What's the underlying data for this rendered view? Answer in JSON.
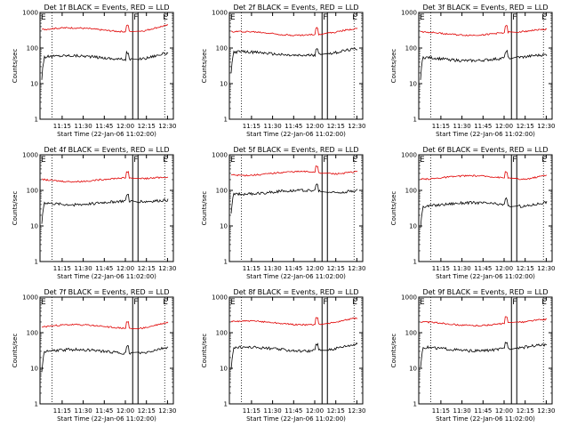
{
  "chart_data": [
    {
      "type": "line",
      "title": "Det 1f BLACK = Events, RED = LLD",
      "xlabel": "Start Time (22-Jan-06 11:02:00)",
      "ylabel": "Counts/sec",
      "yscale": "log",
      "ylim": [
        1,
        1000
      ],
      "yticks": [
        "1",
        "10",
        "100",
        "1000"
      ],
      "xticks": [
        "11:15",
        "11:30",
        "11:45",
        "12:00",
        "12:15",
        "12:30"
      ],
      "markers": [
        "F",
        "E"
      ],
      "series": [
        {
          "color": "#000000",
          "approx_level": 55
        },
        {
          "color": "#e00000",
          "approx_level": 330
        }
      ]
    },
    {
      "type": "line",
      "title": "Det 2f BLACK = Events, RED = LLD",
      "xlabel": "Start Time (22-Jan-06 11:02:00)",
      "ylabel": "Counts/sec",
      "yscale": "log",
      "ylim": [
        1,
        1000
      ],
      "yticks": [
        "1",
        "10",
        "100",
        "1000"
      ],
      "xticks": [
        "11:15",
        "11:30",
        "11:45",
        "12:00",
        "12:15",
        "12:30"
      ],
      "markers": [
        "F",
        "E"
      ],
      "series": [
        {
          "color": "#000000",
          "approx_level": 70
        },
        {
          "color": "#e00000",
          "approx_level": 260
        }
      ]
    },
    {
      "type": "line",
      "title": "Det 3f BLACK = Events, RED = LLD",
      "xlabel": "Start Time (22-Jan-06 11:02:00)",
      "ylabel": "Counts/sec",
      "yscale": "log",
      "ylim": [
        1,
        1000
      ],
      "yticks": [
        "1",
        "10",
        "100",
        "1000"
      ],
      "xticks": [
        "11:15",
        "11:30",
        "11:45",
        "12:00",
        "12:15",
        "12:30"
      ],
      "markers": [
        "F",
        "E"
      ],
      "series": [
        {
          "color": "#000000",
          "approx_level": 50
        },
        {
          "color": "#e00000",
          "approx_level": 260
        }
      ]
    },
    {
      "type": "line",
      "title": "Det 4f BLACK = Events, RED = LLD",
      "xlabel": "Start Time (22-Jan-06 11:02:00)",
      "ylabel": "Counts/sec",
      "yscale": "log",
      "ylim": [
        1,
        1000
      ],
      "yticks": [
        "1",
        "10",
        "100",
        "1000"
      ],
      "xticks": [
        "11:15",
        "11:30",
        "11:45",
        "12:00",
        "12:15",
        "12:30"
      ],
      "markers": [
        "F",
        "E"
      ],
      "series": [
        {
          "color": "#000000",
          "approx_level": 45
        },
        {
          "color": "#e00000",
          "approx_level": 200
        }
      ]
    },
    {
      "type": "line",
      "title": "Det 5f BLACK = Events, RED = LLD",
      "xlabel": "Start Time (22-Jan-06 11:02:00)",
      "ylabel": "Counts/sec",
      "yscale": "log",
      "ylim": [
        1,
        1000
      ],
      "yticks": [
        "1",
        "10",
        "100",
        "1000"
      ],
      "xticks": [
        "11:15",
        "11:30",
        "11:45",
        "12:00",
        "12:15",
        "12:30"
      ],
      "markers": [
        "F",
        "E"
      ],
      "series": [
        {
          "color": "#000000",
          "approx_level": 90
        },
        {
          "color": "#e00000",
          "approx_level": 300
        }
      ]
    },
    {
      "type": "line",
      "title": "Det 6f BLACK = Events, RED = LLD",
      "xlabel": "Start Time (22-Jan-06 11:02:00)",
      "ylabel": "Counts/sec",
      "yscale": "log",
      "ylim": [
        1,
        1000
      ],
      "yticks": [
        "1",
        "10",
        "100",
        "1000"
      ],
      "xticks": [
        "11:15",
        "11:30",
        "11:45",
        "12:00",
        "12:15",
        "12:30"
      ],
      "markers": [
        "F",
        "E"
      ],
      "series": [
        {
          "color": "#000000",
          "approx_level": 40
        },
        {
          "color": "#e00000",
          "approx_level": 230
        }
      ]
    },
    {
      "type": "line",
      "title": "Det 7f BLACK = Events, RED = LLD",
      "xlabel": "Start Time (22-Jan-06 11:02:00)",
      "ylabel": "Counts/sec",
      "yscale": "log",
      "ylim": [
        1,
        1000
      ],
      "yticks": [
        "1",
        "10",
        "100",
        "1000"
      ],
      "xticks": [
        "11:15",
        "11:30",
        "11:45",
        "12:00",
        "12:15",
        "12:30"
      ],
      "markers": [
        "F",
        "E"
      ],
      "series": [
        {
          "color": "#000000",
          "approx_level": 30
        },
        {
          "color": "#e00000",
          "approx_level": 150
        }
      ]
    },
    {
      "type": "line",
      "title": "Det 8f BLACK = Events, RED = LLD",
      "xlabel": "Start Time (22-Jan-06 11:02:00)",
      "ylabel": "Counts/sec",
      "yscale": "log",
      "ylim": [
        1,
        1000
      ],
      "yticks": [
        "1",
        "10",
        "100",
        "1000"
      ],
      "xticks": [
        "11:15",
        "11:30",
        "11:45",
        "12:00",
        "12:15",
        "12:30"
      ],
      "markers": [
        "F",
        "E"
      ],
      "series": [
        {
          "color": "#000000",
          "approx_level": 35
        },
        {
          "color": "#e00000",
          "approx_level": 190
        }
      ]
    },
    {
      "type": "line",
      "title": "Det 9f BLACK = Events, RED = LLD",
      "xlabel": "Start Time (22-Jan-06 11:02:00)",
      "ylabel": "Counts/sec",
      "yscale": "log",
      "ylim": [
        1,
        1000
      ],
      "yticks": [
        "1",
        "10",
        "100",
        "1000"
      ],
      "xticks": [
        "11:15",
        "11:30",
        "11:45",
        "12:00",
        "12:15",
        "12:30"
      ],
      "markers": [
        "F",
        "E"
      ],
      "series": [
        {
          "color": "#000000",
          "approx_level": 35
        },
        {
          "color": "#e00000",
          "approx_level": 180
        }
      ]
    }
  ]
}
